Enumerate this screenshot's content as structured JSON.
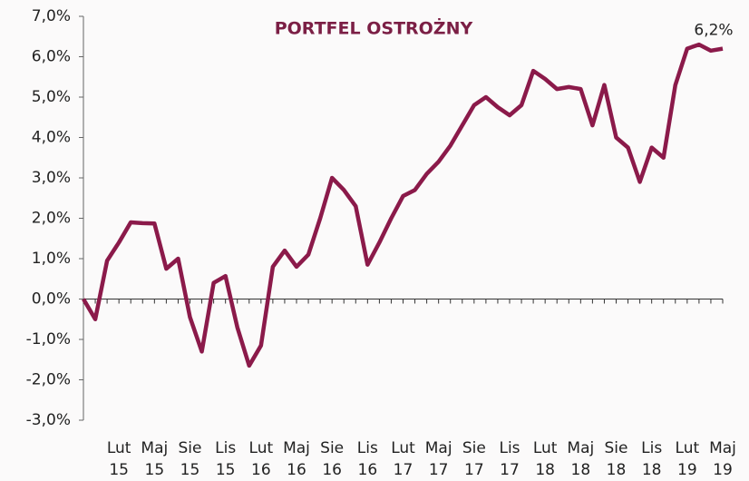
{
  "chart_data": {
    "type": "line",
    "title": "PORTFEL OSTROŻNY",
    "categories": [
      null,
      null,
      null,
      "Lut 15",
      null,
      null,
      "Maj 15",
      null,
      null,
      "Sie 15",
      null,
      null,
      "Lis 15",
      null,
      null,
      "Lut 16",
      null,
      null,
      "Maj 16",
      null,
      null,
      "Sie 16",
      null,
      null,
      "Lis 16",
      null,
      null,
      "Lut 17",
      null,
      null,
      "Maj 17",
      null,
      null,
      "Sie 17",
      null,
      null,
      "Lis 17",
      null,
      null,
      "Lut 18",
      null,
      null,
      "Maj 18",
      null,
      null,
      "Sie 18",
      null,
      null,
      "Lis 18",
      null,
      null,
      "Lut 19",
      null,
      null,
      "Maj 19"
    ],
    "series": [
      {
        "color": "#8b1a4a",
        "values": [
          0,
          -0.5,
          0.95,
          1.4,
          1.9,
          1.88,
          1.87,
          0.75,
          1.0,
          -0.45,
          -1.3,
          0.4,
          0.57,
          -0.7,
          -1.65,
          -1.15,
          0.8,
          1.2,
          0.8,
          1.1,
          2.0,
          3.0,
          2.7,
          2.3,
          0.85,
          1.4,
          2.0,
          2.55,
          2.7,
          3.1,
          3.4,
          3.8,
          4.3,
          4.8,
          5.0,
          4.75,
          4.55,
          4.8,
          5.65,
          5.45,
          5.2,
          5.25,
          5.2,
          4.3,
          5.3,
          4.0,
          3.75,
          2.9,
          3.75,
          3.5,
          5.3,
          6.2,
          6.3,
          6.15,
          6.2
        ],
        "value_labels": [
          null,
          null,
          null,
          null,
          null,
          null,
          null,
          null,
          null,
          null,
          null,
          null,
          null,
          null,
          null,
          null,
          null,
          null,
          null,
          null,
          null,
          null,
          null,
          null,
          null,
          null,
          null,
          null,
          null,
          null,
          null,
          null,
          null,
          null,
          null,
          null,
          null,
          null,
          null,
          null,
          null,
          null,
          null,
          null,
          null,
          null,
          null,
          null,
          null,
          null,
          null,
          null,
          null,
          null,
          "6,2%"
        ]
      }
    ],
    "ylim": [
      -3,
      7
    ],
    "yticks": [
      {
        "value": -3,
        "label": "-3,0%"
      },
      {
        "value": -2,
        "label": "-2,0%"
      },
      {
        "value": -1,
        "label": "-1,0%"
      },
      {
        "value": 0,
        "label": "0,0%"
      },
      {
        "value": 1,
        "label": "1,0%"
      },
      {
        "value": 2,
        "label": "2,0%"
      },
      {
        "value": 3,
        "label": "3,0%"
      },
      {
        "value": 4,
        "label": "4,0%"
      },
      {
        "value": 5,
        "label": "5,0%"
      },
      {
        "value": 6,
        "label": "6,0%"
      },
      {
        "value": 7,
        "label": "7,0%"
      }
    ],
    "grid": false
  }
}
